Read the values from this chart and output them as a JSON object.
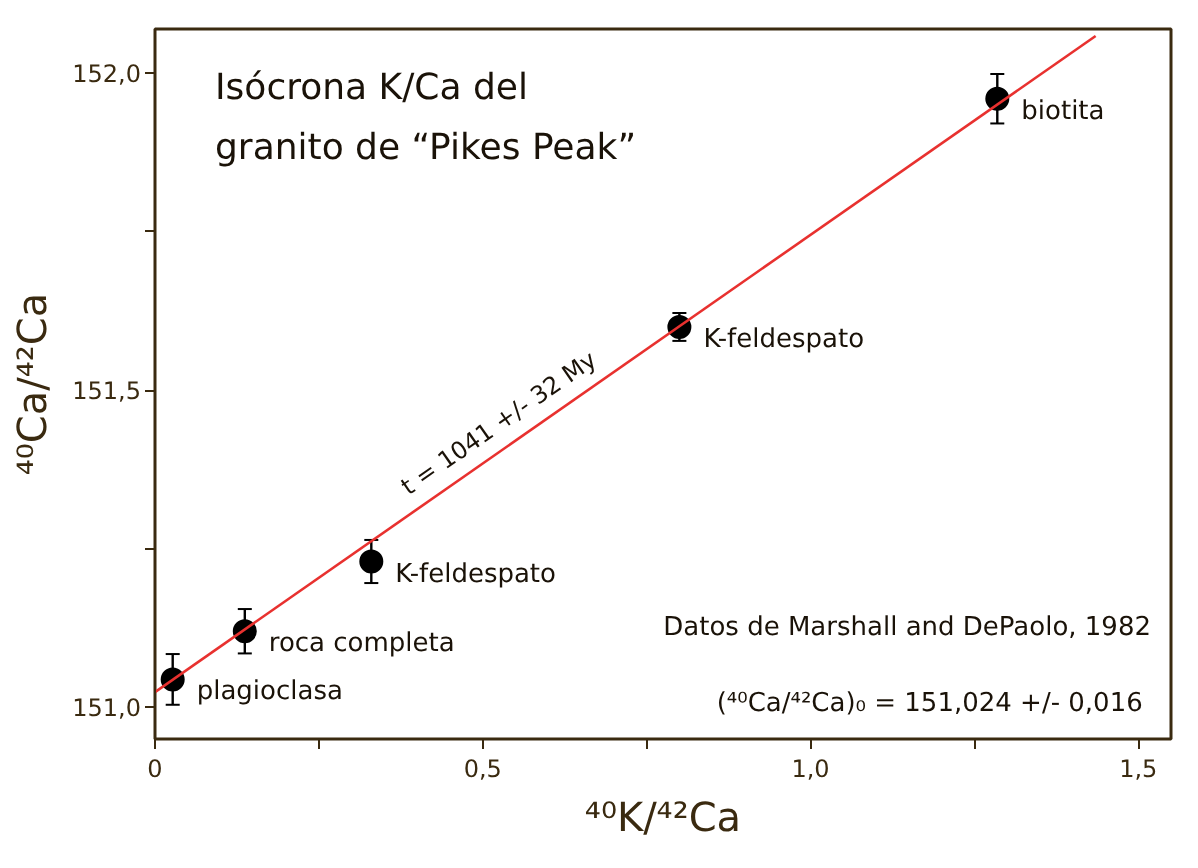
{
  "chart_data": {
    "type": "scatter",
    "title": "Isócrona  K/Ca del\ngranito de “Pikes Peak”",
    "xlabel": "⁴⁰K/⁴²Ca",
    "ylabel": "⁴⁰Ca/⁴²Ca",
    "xlim": [
      0,
      1.55
    ],
    "ylim": [
      150.95,
      152.07
    ],
    "xticks": [
      0,
      {
        "value": 0.25,
        "label": null
      },
      {
        "value": 0.5,
        "label": "0,5"
      },
      {
        "value": 0.75,
        "label": null
      },
      {
        "value": 1.0,
        "label": "1,0"
      },
      {
        "value": 1.25,
        "label": null
      },
      {
        "value": 1.5,
        "label": "1,5"
      }
    ],
    "yticks": [
      {
        "value": 151.0,
        "label": "151,0"
      },
      {
        "value": 151.25,
        "label": null
      },
      {
        "value": 151.5,
        "label": "151,5"
      },
      {
        "value": 151.75,
        "label": null
      },
      {
        "value": 152.0,
        "label": "152,0"
      }
    ],
    "grid": false,
    "marker": "circle",
    "series": [
      {
        "color": "#000000",
        "x": [
          0.027,
          0.137,
          0.33,
          0.8,
          1.285
        ],
        "values": [
          151.044,
          151.12,
          151.23,
          151.6,
          151.96
        ],
        "errors": [
          0.04,
          0.035,
          0.034,
          0.022,
          0.039
        ]
      },
      {
        "type": "line",
        "marker": "none",
        "color": "#e8312f",
        "x": [
          0,
          1.435
        ],
        "values": [
          151.024,
          152.059
        ]
      }
    ],
    "annotations": [
      {
        "text": "plagioclasa",
        "x": 0.027,
        "y": 151.044
      },
      {
        "text": "roca completa",
        "x": 0.137,
        "y": 151.12
      },
      {
        "text": "K-feldespato",
        "x": 0.33,
        "y": 151.23
      },
      {
        "text": "K-feldespato",
        "x": 0.8,
        "y": 151.6
      },
      {
        "text": "biotita",
        "x": 1.285,
        "y": 151.96
      },
      "t = 1041 +/- 32 My",
      "Datos de Marshall and DePaolo, 1982",
      "(⁴⁰Ca/⁴²Ca)₀ =  151,024 +/- 0,016"
    ]
  }
}
